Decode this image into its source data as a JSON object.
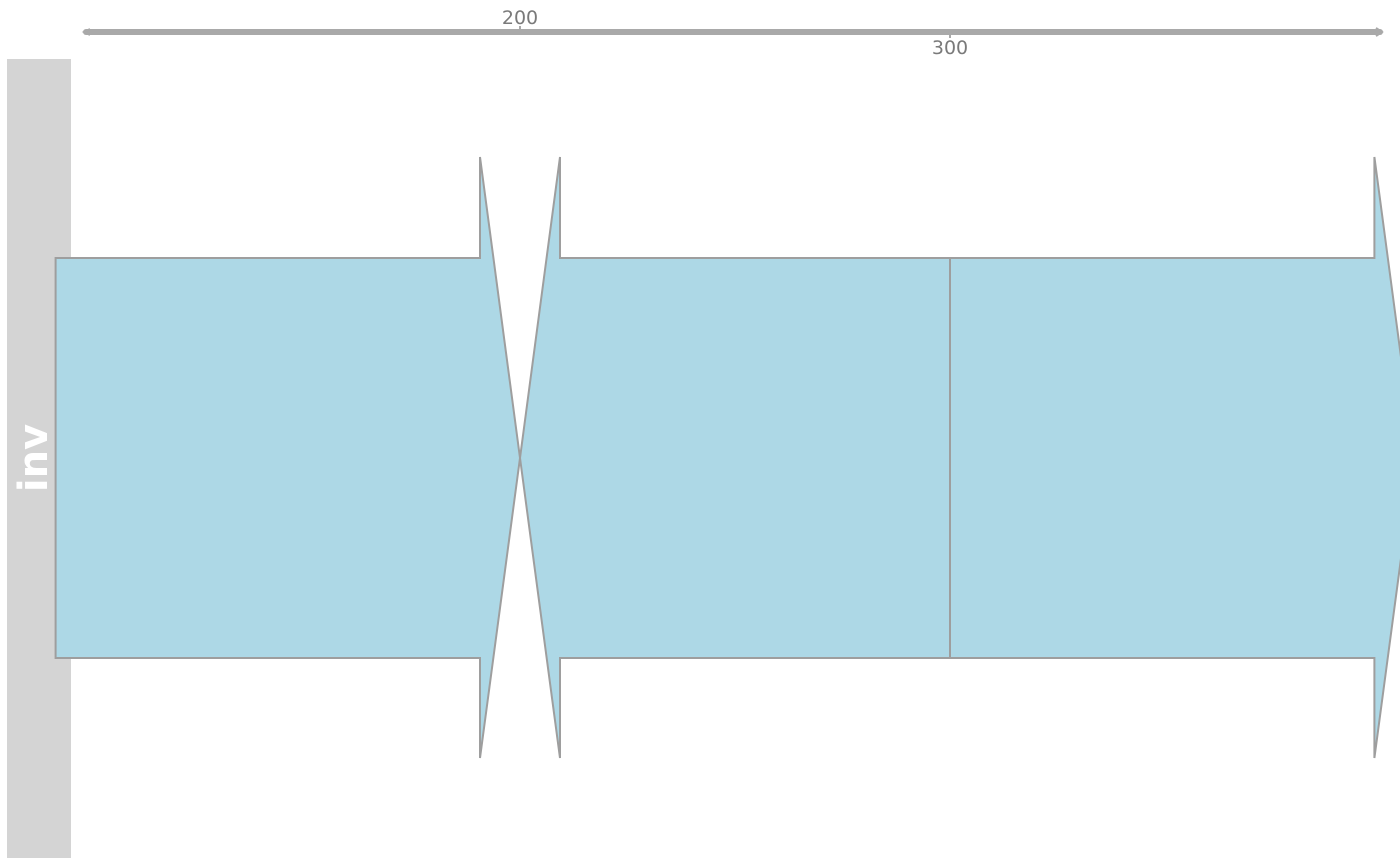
{
  "scale_axis": {
    "ticks": [
      {
        "value": 200,
        "label": "200"
      },
      {
        "value": 300,
        "label": "300"
      }
    ],
    "color": "#a9a9a9",
    "label_color": "#7a7a7a"
  },
  "panel": {
    "label": "inv",
    "strip_color": "#d4d4d4",
    "label_color": "#ffffff"
  },
  "features": [
    {
      "id": "arrow-1",
      "start": 92,
      "end": 200,
      "direction": "forward"
    },
    {
      "id": "arrow-2",
      "start": 200,
      "end": 300,
      "direction": "reverse"
    },
    {
      "id": "arrow-3",
      "start": 300,
      "end": 408,
      "direction": "forward"
    }
  ],
  "style": {
    "feature_fill": "#add8e6",
    "feature_stroke": "#9e9e9e",
    "background": "#ffffff"
  }
}
